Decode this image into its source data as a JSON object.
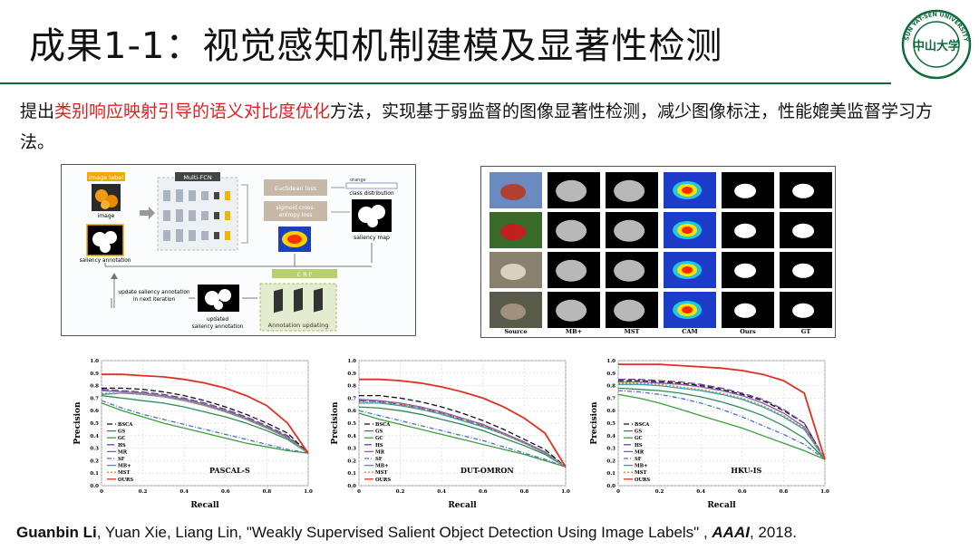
{
  "slide": {
    "title": "成果1-1：视觉感知机制建模及显著性检测",
    "intro_pre": "提出",
    "intro_highlight": "类别响应映射引导的语义对比度优化",
    "intro_post": "方法，实现基于弱监督的图像显著性检测，减少图像标注，性能媲美监督学习方法。"
  },
  "logo": {
    "text": "中山大学",
    "ring_text": "SUN YAT-SEN UNIVERSITY",
    "color": "#0d6b3a"
  },
  "pipeline": {
    "image_label": "image label",
    "image": "image",
    "saliency_annotation": "saliency annotation",
    "multi_fcn": "Multi-FCN",
    "euclidean_loss": "Euclidean loss",
    "sigmoid_loss_1": "sigmoid cross-",
    "sigmoid_loss_2": "entropy loss",
    "orange": "orange",
    "class_distribution": "class distribution",
    "saliency_map": "saliency map",
    "crf": "C R F",
    "update_1": "update saliency annotation",
    "update_2": "in next iteration",
    "updated_1": "updated",
    "updated_2": "saliency annotation",
    "annotation_updating": "Annotation updating"
  },
  "comparison": {
    "columns": [
      "Source",
      "MB+",
      "MST",
      "CAM",
      "Ours",
      "GT"
    ]
  },
  "chart_data": [
    {
      "type": "line",
      "title": "PASCAL-S",
      "xlabel": "Recall",
      "ylabel": "Precision",
      "xlim": [
        0,
        1
      ],
      "ylim": [
        0,
        1
      ],
      "ticks": [
        "0.0",
        "0.1",
        "0.2",
        "0.3",
        "0.4",
        "0.5",
        "0.6",
        "0.7",
        "0.8",
        "0.9",
        "1.0"
      ],
      "xticks": [
        "0",
        "0.2",
        "0.4",
        "0.6",
        "0.8",
        "1.0"
      ],
      "grid": true,
      "legend": "bottom-left",
      "x": [
        0.0,
        0.1,
        0.2,
        0.3,
        0.4,
        0.5,
        0.6,
        0.7,
        0.8,
        0.9,
        1.0
      ],
      "series": [
        {
          "name": "BSCA",
          "color": "#111111",
          "dash": "6,3",
          "values": [
            0.78,
            0.78,
            0.77,
            0.75,
            0.72,
            0.68,
            0.63,
            0.57,
            0.5,
            0.42,
            0.26
          ]
        },
        {
          "name": "GS",
          "color": "#2e8b57",
          "dash": "",
          "values": [
            0.72,
            0.7,
            0.68,
            0.66,
            0.63,
            0.59,
            0.55,
            0.5,
            0.44,
            0.37,
            0.26
          ]
        },
        {
          "name": "GC",
          "color": "#3aa03a",
          "dash": "",
          "values": [
            0.66,
            0.6,
            0.55,
            0.5,
            0.46,
            0.42,
            0.38,
            0.34,
            0.31,
            0.28,
            0.26
          ]
        },
        {
          "name": "HS",
          "color": "#6a3fa0",
          "dash": "8,3",
          "values": [
            0.77,
            0.76,
            0.75,
            0.73,
            0.7,
            0.66,
            0.61,
            0.55,
            0.48,
            0.4,
            0.26
          ]
        },
        {
          "name": "MR",
          "color": "#8a5ab0",
          "dash": "",
          "values": [
            0.76,
            0.75,
            0.74,
            0.72,
            0.69,
            0.65,
            0.6,
            0.54,
            0.47,
            0.39,
            0.26
          ]
        },
        {
          "name": "SF",
          "color": "#4a6fd0",
          "dash": "5,2,1,2",
          "values": [
            0.68,
            0.62,
            0.57,
            0.53,
            0.49,
            0.45,
            0.41,
            0.37,
            0.33,
            0.29,
            0.26
          ]
        },
        {
          "name": "MB+",
          "color": "#2aa0b0",
          "dash": "",
          "values": [
            0.73,
            0.74,
            0.73,
            0.71,
            0.68,
            0.64,
            0.59,
            0.53,
            0.46,
            0.38,
            0.26
          ]
        },
        {
          "name": "MST",
          "color": "#e08a30",
          "dash": "2,2",
          "values": [
            0.74,
            0.74,
            0.73,
            0.71,
            0.68,
            0.64,
            0.59,
            0.53,
            0.46,
            0.38,
            0.26
          ]
        },
        {
          "name": "OURS",
          "color": "#e03020",
          "dash": "",
          "values": [
            0.89,
            0.89,
            0.88,
            0.87,
            0.85,
            0.82,
            0.78,
            0.72,
            0.64,
            0.5,
            0.26
          ]
        }
      ]
    },
    {
      "type": "line",
      "title": "DUT-OMRON",
      "xlabel": "Recall",
      "ylabel": "Precision",
      "xlim": [
        0,
        1
      ],
      "ylim": [
        0,
        1
      ],
      "ticks": [
        "0.0",
        "0.1",
        "0.2",
        "0.3",
        "0.4",
        "0.5",
        "0.6",
        "0.7",
        "0.8",
        "0.9",
        "1.0"
      ],
      "xticks": [
        "0",
        "0.2",
        "0.4",
        "0.6",
        "0.8",
        "1.0"
      ],
      "grid": true,
      "legend": "bottom-left",
      "x": [
        0.0,
        0.1,
        0.2,
        0.3,
        0.4,
        0.5,
        0.6,
        0.7,
        0.8,
        0.9,
        1.0
      ],
      "series": [
        {
          "name": "BSCA",
          "color": "#111111",
          "dash": "6,3",
          "values": [
            0.72,
            0.72,
            0.7,
            0.67,
            0.63,
            0.58,
            0.52,
            0.45,
            0.37,
            0.29,
            0.15
          ]
        },
        {
          "name": "GS",
          "color": "#2e8b57",
          "dash": "",
          "values": [
            0.63,
            0.62,
            0.6,
            0.57,
            0.53,
            0.49,
            0.44,
            0.38,
            0.32,
            0.25,
            0.15
          ]
        },
        {
          "name": "GC",
          "color": "#3aa03a",
          "dash": "",
          "values": [
            0.58,
            0.53,
            0.49,
            0.45,
            0.41,
            0.37,
            0.33,
            0.29,
            0.25,
            0.2,
            0.15
          ]
        },
        {
          "name": "HS",
          "color": "#6a3fa0",
          "dash": "8,3",
          "values": [
            0.68,
            0.67,
            0.65,
            0.62,
            0.58,
            0.53,
            0.48,
            0.41,
            0.34,
            0.26,
            0.15
          ]
        },
        {
          "name": "MR",
          "color": "#8a5ab0",
          "dash": "",
          "values": [
            0.69,
            0.68,
            0.66,
            0.63,
            0.59,
            0.54,
            0.49,
            0.42,
            0.35,
            0.27,
            0.15
          ]
        },
        {
          "name": "SF",
          "color": "#4a6fd0",
          "dash": "5,2,1,2",
          "values": [
            0.6,
            0.56,
            0.52,
            0.48,
            0.44,
            0.4,
            0.36,
            0.31,
            0.26,
            0.21,
            0.15
          ]
        },
        {
          "name": "MB+",
          "color": "#2aa0b0",
          "dash": "",
          "values": [
            0.66,
            0.66,
            0.64,
            0.61,
            0.57,
            0.52,
            0.47,
            0.41,
            0.34,
            0.26,
            0.15
          ]
        },
        {
          "name": "MST",
          "color": "#e08a30",
          "dash": "2,2",
          "values": [
            0.67,
            0.67,
            0.65,
            0.62,
            0.58,
            0.53,
            0.48,
            0.41,
            0.34,
            0.26,
            0.15
          ]
        },
        {
          "name": "OURS",
          "color": "#e03020",
          "dash": "",
          "values": [
            0.85,
            0.85,
            0.84,
            0.82,
            0.79,
            0.75,
            0.7,
            0.63,
            0.54,
            0.42,
            0.15
          ]
        }
      ]
    },
    {
      "type": "line",
      "title": "HKU-IS",
      "xlabel": "Recall",
      "ylabel": "Precision",
      "xlim": [
        0,
        1
      ],
      "ylim": [
        0,
        1
      ],
      "ticks": [
        "0.0",
        "0.1",
        "0.2",
        "0.3",
        "0.4",
        "0.5",
        "0.6",
        "0.7",
        "0.8",
        "0.9",
        "1.0"
      ],
      "xticks": [
        "0",
        "0.2",
        "0.4",
        "0.6",
        "0.8",
        "1.0"
      ],
      "grid": true,
      "legend": "bottom-left",
      "x": [
        0.0,
        0.1,
        0.2,
        0.3,
        0.4,
        0.5,
        0.6,
        0.7,
        0.8,
        0.9,
        1.0
      ],
      "series": [
        {
          "name": "BSCA",
          "color": "#111111",
          "dash": "6,3",
          "values": [
            0.84,
            0.84,
            0.83,
            0.82,
            0.8,
            0.77,
            0.73,
            0.68,
            0.6,
            0.5,
            0.21
          ]
        },
        {
          "name": "GS",
          "color": "#2e8b57",
          "dash": "",
          "values": [
            0.78,
            0.77,
            0.76,
            0.74,
            0.71,
            0.67,
            0.62,
            0.56,
            0.48,
            0.38,
            0.21
          ]
        },
        {
          "name": "GC",
          "color": "#3aa03a",
          "dash": "",
          "values": [
            0.73,
            0.7,
            0.66,
            0.61,
            0.56,
            0.51,
            0.46,
            0.4,
            0.34,
            0.28,
            0.21
          ]
        },
        {
          "name": "HS",
          "color": "#6a3fa0",
          "dash": "8,3",
          "values": [
            0.85,
            0.85,
            0.84,
            0.83,
            0.81,
            0.78,
            0.74,
            0.69,
            0.61,
            0.5,
            0.21
          ]
        },
        {
          "name": "MR",
          "color": "#8a5ab0",
          "dash": "",
          "values": [
            0.83,
            0.83,
            0.82,
            0.81,
            0.79,
            0.76,
            0.72,
            0.66,
            0.58,
            0.47,
            0.21
          ]
        },
        {
          "name": "SF",
          "color": "#4a6fd0",
          "dash": "5,2,1,2",
          "values": [
            0.76,
            0.75,
            0.73,
            0.7,
            0.66,
            0.61,
            0.55,
            0.48,
            0.41,
            0.33,
            0.21
          ]
        },
        {
          "name": "MB+",
          "color": "#2aa0b0",
          "dash": "",
          "values": [
            0.81,
            0.81,
            0.8,
            0.78,
            0.76,
            0.73,
            0.69,
            0.63,
            0.55,
            0.45,
            0.21
          ]
        },
        {
          "name": "MST",
          "color": "#e08a30",
          "dash": "2,2",
          "values": [
            0.82,
            0.82,
            0.81,
            0.79,
            0.77,
            0.74,
            0.7,
            0.64,
            0.56,
            0.46,
            0.21
          ]
        },
        {
          "name": "OURS",
          "color": "#e03020",
          "dash": "",
          "values": [
            0.97,
            0.97,
            0.97,
            0.96,
            0.95,
            0.94,
            0.92,
            0.89,
            0.84,
            0.74,
            0.21
          ]
        }
      ]
    }
  ],
  "citation": {
    "author_bold": "Guanbin Li",
    "rest": ", Yuan Xie, Liang Lin, \"Weakly Supervised Salient Object Detection Using Image Labels\" , ",
    "venue": "AAAI",
    "year": ", 2018."
  }
}
